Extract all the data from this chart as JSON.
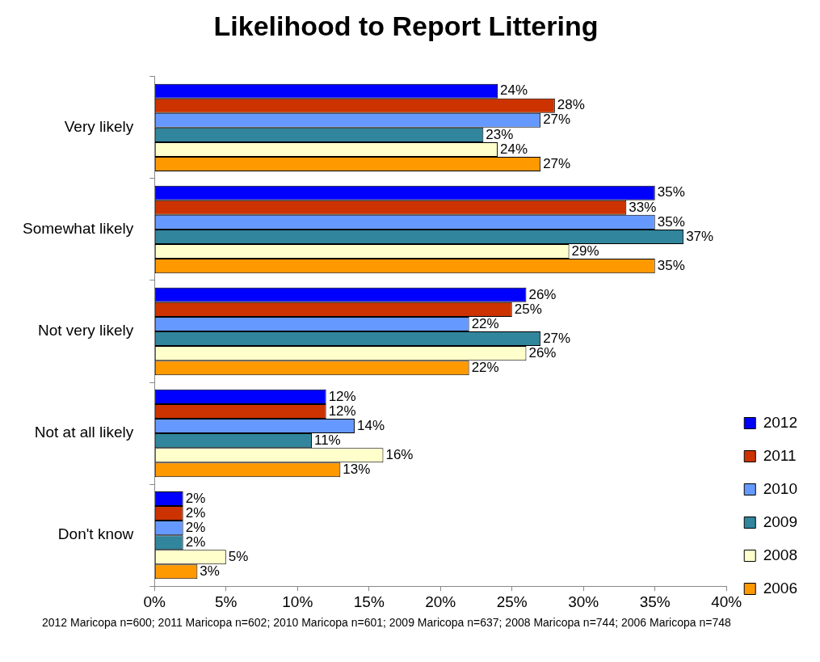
{
  "chart_data": {
    "type": "bar",
    "orientation": "horizontal",
    "title": "Likelihood to Report Littering",
    "categories": [
      "Very likely",
      "Somewhat likely",
      "Not very likely",
      "Not at all likely",
      "Don't know"
    ],
    "series": [
      {
        "name": "2012",
        "color": "#0000ff",
        "values": [
          24,
          35,
          26,
          12,
          2
        ],
        "value_labels": [
          "24%",
          "35%",
          "26%",
          "12%",
          "2%"
        ]
      },
      {
        "name": "2011",
        "color": "#cc3300",
        "values": [
          28,
          33,
          25,
          12,
          2
        ],
        "value_labels": [
          "28%",
          "33%",
          "25%",
          "12%",
          "2%"
        ]
      },
      {
        "name": "2010",
        "color": "#6699ff",
        "values": [
          27,
          35,
          22,
          14,
          2
        ],
        "value_labels": [
          "27%",
          "35%",
          "22%",
          "14%",
          "2%"
        ]
      },
      {
        "name": "2009",
        "color": "#31859c",
        "values": [
          23,
          37,
          27,
          11,
          2
        ],
        "value_labels": [
          "23%",
          "37%",
          "27%",
          "11%",
          "2%"
        ]
      },
      {
        "name": "2008",
        "color": "#ffffcc",
        "values": [
          24,
          29,
          26,
          16,
          5
        ],
        "value_labels": [
          "24%",
          "29%",
          "26%",
          "16%",
          "5%"
        ]
      },
      {
        "name": "2006",
        "color": "#ff9900",
        "values": [
          27,
          35,
          22,
          13,
          3
        ],
        "value_labels": [
          "27%",
          "35%",
          "22%",
          "13%",
          "3%"
        ]
      }
    ],
    "xlim": [
      0,
      40
    ],
    "xticks": [
      {
        "value": 0,
        "label": "0%"
      },
      {
        "value": 5,
        "label": "5%"
      },
      {
        "value": 10,
        "label": "10%"
      },
      {
        "value": 15,
        "label": "15%"
      },
      {
        "value": 20,
        "label": "20%"
      },
      {
        "value": 25,
        "label": "25%"
      },
      {
        "value": 30,
        "label": "30%"
      },
      {
        "value": 35,
        "label": "35%"
      },
      {
        "value": 40,
        "label": "40%"
      }
    ],
    "grid": false,
    "legend": "right",
    "annotations": [
      "2012 Maricopa n=600; 2011 Maricopa n=602; 2010 Maricopa n=601; 2009 Maricopa n=637; 2008 Maricopa n=744; 2006 Maricopa n=748"
    ]
  }
}
